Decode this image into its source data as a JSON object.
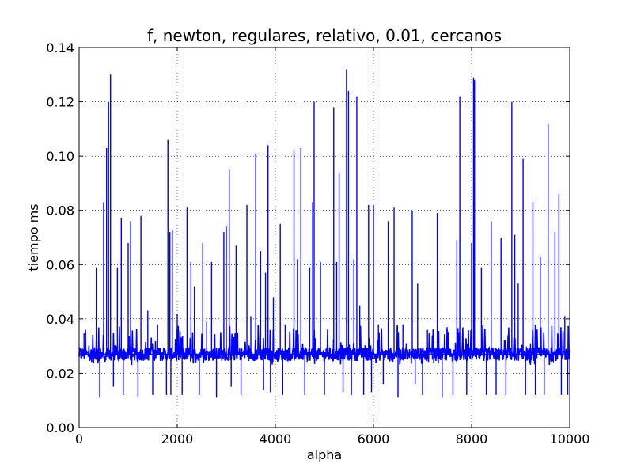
{
  "chart_data": {
    "type": "line",
    "title": "f, newton, regulares, relativo, 0.01, cercanos",
    "xlabel": "alpha",
    "ylabel": "tiempo ms",
    "xlim": [
      0,
      10000
    ],
    "ylim": [
      0.0,
      0.14
    ],
    "grid": true,
    "xticks": [
      0,
      2000,
      4000,
      6000,
      8000,
      10000
    ],
    "xtick_labels": [
      "0",
      "2000",
      "4000",
      "6000",
      "8000",
      "10000"
    ],
    "yticks": [
      0.0,
      0.02,
      0.04,
      0.06,
      0.08,
      0.1,
      0.12,
      0.14
    ],
    "ytick_labels": [
      "0.00",
      "0.02",
      "0.04",
      "0.06",
      "0.08",
      "0.10",
      "0.12",
      "0.14"
    ],
    "series": [
      {
        "color": "#0000ff",
        "baseline": 0.027,
        "x": [
          0,
          100,
          200,
          350,
          420,
          500,
          520,
          560,
          600,
          620,
          640,
          700,
          780,
          860,
          900,
          1000,
          1050,
          1100,
          1200,
          1260,
          1350,
          1400,
          1500,
          1600,
          1700,
          1780,
          1810,
          1850,
          1870,
          1900,
          2000,
          2100,
          2200,
          2220,
          2280,
          2350,
          2450,
          2520,
          2600,
          2700,
          2800,
          2950,
          3000,
          3060,
          3100,
          3200,
          3300,
          3420,
          3500,
          3600,
          3700,
          3760,
          3800,
          3850,
          3900,
          3960,
          4020,
          4100,
          4150,
          4200,
          4300,
          4380,
          4450,
          4520,
          4600,
          4700,
          4760,
          4790,
          4850,
          4920,
          5000,
          5100,
          5190,
          5250,
          5300,
          5380,
          5450,
          5490,
          5550,
          5600,
          5660,
          5720,
          5800,
          5900,
          5960,
          6000,
          6100,
          6200,
          6300,
          6420,
          6500,
          6600,
          6700,
          6790,
          6850,
          6900,
          7000,
          7100,
          7200,
          7300,
          7400,
          7500,
          7620,
          7700,
          7760,
          7800,
          7900,
          8000,
          8040,
          8060,
          8100,
          8200,
          8300,
          8400,
          8500,
          8600,
          8700,
          8820,
          8880,
          8950,
          9050,
          9100,
          9200,
          9250,
          9300,
          9400,
          9480,
          9560,
          9600,
          9700,
          9780,
          9830,
          9900,
          9960,
          10000
        ],
        "y": [
          0.027,
          0.035,
          0.026,
          0.059,
          0.011,
          0.083,
          0.027,
          0.103,
          0.12,
          0.025,
          0.13,
          0.015,
          0.059,
          0.077,
          0.012,
          0.068,
          0.076,
          0.026,
          0.011,
          0.078,
          0.029,
          0.043,
          0.012,
          0.038,
          0.028,
          0.012,
          0.106,
          0.072,
          0.012,
          0.073,
          0.042,
          0.012,
          0.081,
          0.026,
          0.061,
          0.052,
          0.012,
          0.068,
          0.039,
          0.061,
          0.011,
          0.072,
          0.074,
          0.095,
          0.015,
          0.067,
          0.012,
          0.082,
          0.041,
          0.101,
          0.065,
          0.014,
          0.057,
          0.104,
          0.013,
          0.048,
          0.026,
          0.075,
          0.012,
          0.038,
          0.025,
          0.102,
          0.062,
          0.103,
          0.012,
          0.059,
          0.083,
          0.12,
          0.025,
          0.061,
          0.012,
          0.025,
          0.118,
          0.061,
          0.094,
          0.013,
          0.132,
          0.124,
          0.012,
          0.062,
          0.122,
          0.045,
          0.012,
          0.082,
          0.013,
          0.082,
          0.038,
          0.016,
          0.076,
          0.081,
          0.011,
          0.038,
          0.025,
          0.08,
          0.016,
          0.053,
          0.012,
          0.036,
          0.025,
          0.079,
          0.011,
          0.037,
          0.012,
          0.069,
          0.122,
          0.026,
          0.012,
          0.068,
          0.129,
          0.128,
          0.025,
          0.059,
          0.012,
          0.076,
          0.012,
          0.07,
          0.012,
          0.12,
          0.071,
          0.053,
          0.099,
          0.012,
          0.031,
          0.083,
          0.012,
          0.063,
          0.012,
          0.112,
          0.026,
          0.072,
          0.086,
          0.012,
          0.041,
          0.012,
          0.029
        ]
      }
    ]
  }
}
